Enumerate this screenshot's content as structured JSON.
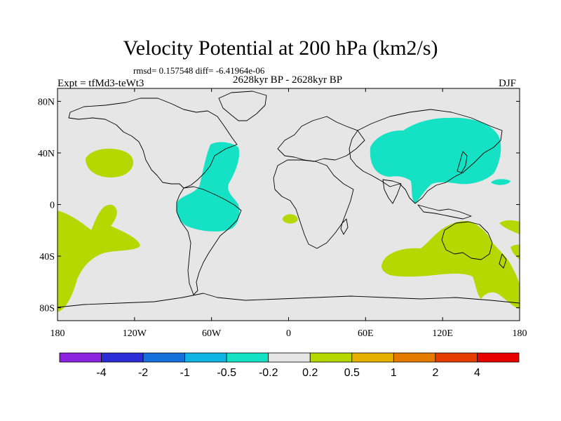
{
  "header": {
    "title": "Velocity Potential at 200 hPa (km2/s)",
    "stats": "rmsd= 0.157548 diff= -6.41964e-06",
    "period": "2628kyr BP - 2628kyr BP",
    "experiment": "Expt = tfMd3-teWt3",
    "season": "DJF"
  },
  "map": {
    "projection": "cylindrical equidistant",
    "lon_range": [
      -180,
      180
    ],
    "lat_range": [
      -90,
      90
    ],
    "lon_ticks": [
      {
        "value": -180,
        "label": "180"
      },
      {
        "value": -120,
        "label": "120W"
      },
      {
        "value": -60,
        "label": "60W"
      },
      {
        "value": 0,
        "label": "0"
      },
      {
        "value": 60,
        "label": "60E"
      },
      {
        "value": 120,
        "label": "120E"
      },
      {
        "value": 180,
        "label": "180"
      }
    ],
    "lat_ticks": [
      {
        "value": 80,
        "label": "80N"
      },
      {
        "value": 40,
        "label": "40N"
      },
      {
        "value": 0,
        "label": "0"
      },
      {
        "value": -40,
        "label": "40S"
      },
      {
        "value": -80,
        "label": "80S"
      }
    ],
    "background_color": "#e6e6e6"
  },
  "colorbar": {
    "colors": [
      "#8b22e0",
      "#2c2cd6",
      "#1670dc",
      "#10b4e4",
      "#15e2c4",
      "#e6e6e6",
      "#b4d800",
      "#e6b000",
      "#e67a00",
      "#e63c00",
      "#e60000"
    ],
    "labels": [
      "-4",
      "-2",
      "-1",
      "-0.5",
      "-0.2",
      "0.2",
      "0.5",
      "1",
      "2",
      "4"
    ]
  },
  "colors": {
    "negative_fill": "#15e2c4",
    "positive_fill": "#b4d800",
    "coast": "#000000"
  }
}
